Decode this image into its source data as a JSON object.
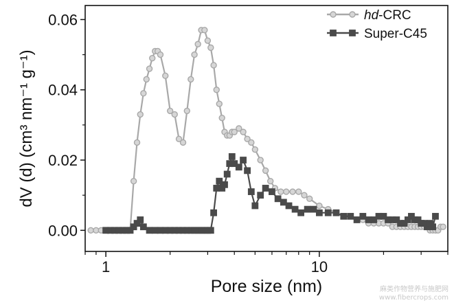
{
  "chart_data": {
    "type": "line",
    "xlabel": "Pore size (nm)",
    "ylabel": "dV (d) (cm³ nm⁻¹ g⁻¹)",
    "xscale": "log",
    "xlim": [
      0.8,
      40
    ],
    "ylim": [
      -0.006,
      0.064
    ],
    "x_ticks": [
      1,
      10
    ],
    "x_tick_labels": [
      "1",
      "10"
    ],
    "y_ticks": [
      0.0,
      0.02,
      0.04,
      0.06
    ],
    "y_tick_labels": [
      "0.00",
      "0.02",
      "0.04",
      "0.06"
    ],
    "grid": false,
    "legend": "top-right",
    "series": [
      {
        "name": "hd-CRC",
        "name_italic": "hd",
        "name_rest": "-CRC",
        "color": "#a8a8a8",
        "marker": "circle",
        "x": [
          0.85,
          0.9,
          0.95,
          1.0,
          1.05,
          1.1,
          1.15,
          1.2,
          1.25,
          1.3,
          1.35,
          1.4,
          1.45,
          1.5,
          1.55,
          1.6,
          1.65,
          1.7,
          1.75,
          1.8,
          1.9,
          2.0,
          2.1,
          2.2,
          2.3,
          2.4,
          2.5,
          2.6,
          2.7,
          2.8,
          2.9,
          3.0,
          3.1,
          3.2,
          3.3,
          3.4,
          3.5,
          3.6,
          3.7,
          3.8,
          3.9,
          4.0,
          4.2,
          4.4,
          4.6,
          4.8,
          5.0,
          5.3,
          5.6,
          5.9,
          6.2,
          6.6,
          7.0,
          7.5,
          8.0,
          8.5,
          9.0,
          10,
          11,
          12,
          13,
          14,
          15,
          16,
          17,
          18,
          19,
          20,
          21,
          22,
          23,
          24,
          25,
          26,
          27,
          28,
          29,
          30,
          31,
          32,
          33,
          34,
          35,
          36,
          37,
          38
        ],
        "y": [
          0.0,
          0.0,
          0.0,
          0.0,
          0.0,
          0.0,
          0.0,
          0.0,
          0.0,
          0.0,
          0.014,
          0.025,
          0.033,
          0.039,
          0.043,
          0.046,
          0.049,
          0.051,
          0.051,
          0.05,
          0.044,
          0.034,
          0.033,
          0.026,
          0.025,
          0.034,
          0.043,
          0.05,
          0.053,
          0.057,
          0.057,
          0.054,
          0.052,
          0.047,
          0.04,
          0.036,
          0.032,
          0.028,
          0.027,
          0.027,
          0.028,
          0.028,
          0.029,
          0.028,
          0.026,
          0.025,
          0.023,
          0.02,
          0.017,
          0.014,
          0.012,
          0.011,
          0.011,
          0.011,
          0.011,
          0.01,
          0.009,
          0.007,
          0.006,
          0.005,
          0.004,
          0.004,
          0.003,
          0.003,
          0.002,
          0.002,
          0.002,
          0.002,
          0.002,
          0.001,
          0.001,
          0.001,
          0.001,
          0.001,
          0.001,
          0.001,
          0.001,
          0.001,
          0.001,
          0.001,
          0.0,
          0.0,
          0.0,
          0.0,
          0.001,
          0.001
        ]
      },
      {
        "name": "Super-C45",
        "color": "#4a4a4a",
        "marker": "square",
        "x": [
          1.0,
          1.05,
          1.1,
          1.15,
          1.2,
          1.25,
          1.3,
          1.35,
          1.4,
          1.45,
          1.5,
          1.6,
          1.7,
          1.8,
          1.9,
          2.0,
          2.1,
          2.2,
          2.3,
          2.4,
          2.5,
          2.6,
          2.7,
          2.8,
          2.9,
          3.0,
          3.1,
          3.2,
          3.3,
          3.4,
          3.5,
          3.6,
          3.7,
          3.8,
          3.9,
          4.0,
          4.2,
          4.4,
          4.6,
          4.8,
          5.0,
          5.3,
          5.6,
          6.0,
          6.4,
          6.8,
          7.2,
          7.7,
          8.2,
          8.8,
          9.4,
          10,
          11,
          12,
          13,
          14,
          15,
          16,
          17,
          18,
          19,
          20,
          21,
          22,
          23,
          24,
          25,
          26,
          27,
          28,
          29,
          30,
          31,
          32,
          33,
          34,
          35
        ],
        "y": [
          0.0,
          0.0,
          0.0,
          0.0,
          0.0,
          0.0,
          0.0,
          0.001,
          0.002,
          0.003,
          0.001,
          0.0,
          0.0,
          0.0,
          0.0,
          0.0,
          0.0,
          0.0,
          0.0,
          0.0,
          0.0,
          0.0,
          0.0,
          0.0,
          0.0,
          0.0,
          0.0,
          0.005,
          0.012,
          0.014,
          0.012,
          0.013,
          0.016,
          0.019,
          0.021,
          0.019,
          0.018,
          0.02,
          0.017,
          0.011,
          0.007,
          0.01,
          0.012,
          0.011,
          0.009,
          0.008,
          0.007,
          0.006,
          0.005,
          0.006,
          0.006,
          0.005,
          0.005,
          0.005,
          0.004,
          0.004,
          0.003,
          0.004,
          0.003,
          0.003,
          0.004,
          0.004,
          0.003,
          0.003,
          0.003,
          0.002,
          0.002,
          0.003,
          0.004,
          0.003,
          0.003,
          0.002,
          0.002,
          0.001,
          0.002,
          0.001,
          0.004
        ]
      }
    ]
  },
  "watermark": {
    "line1": "麻类作物营养与施肥网",
    "line2": "www.fibercrops.com"
  }
}
